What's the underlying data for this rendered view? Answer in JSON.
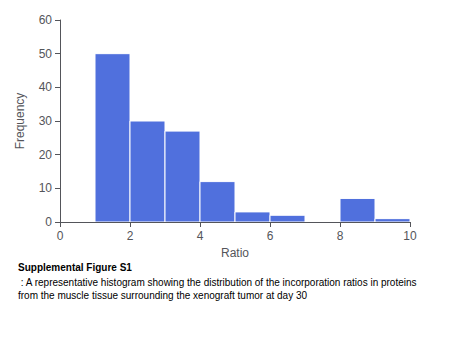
{
  "chart_data": {
    "type": "histogram",
    "xlabel": "Ratio",
    "ylabel": "Frequency",
    "bins": [
      0,
      1,
      2,
      3,
      4,
      5,
      6,
      7,
      8,
      9,
      10
    ],
    "values": [
      0,
      50,
      30,
      27,
      12,
      3,
      2,
      0,
      7,
      1
    ],
    "xlim": [
      0,
      10
    ],
    "ylim": [
      0,
      60
    ],
    "xticks": [
      0,
      2,
      4,
      6,
      8,
      10
    ],
    "yticks": [
      0,
      10,
      20,
      30,
      40,
      50,
      60
    ],
    "grid": false,
    "annotations": [
      "Supplemental Figure S1",
      " : A representative histogram showing the distribution of the incorporation ratios in proteins from the muscle tissue surrounding the xenograft tumor at day 30"
    ]
  }
}
